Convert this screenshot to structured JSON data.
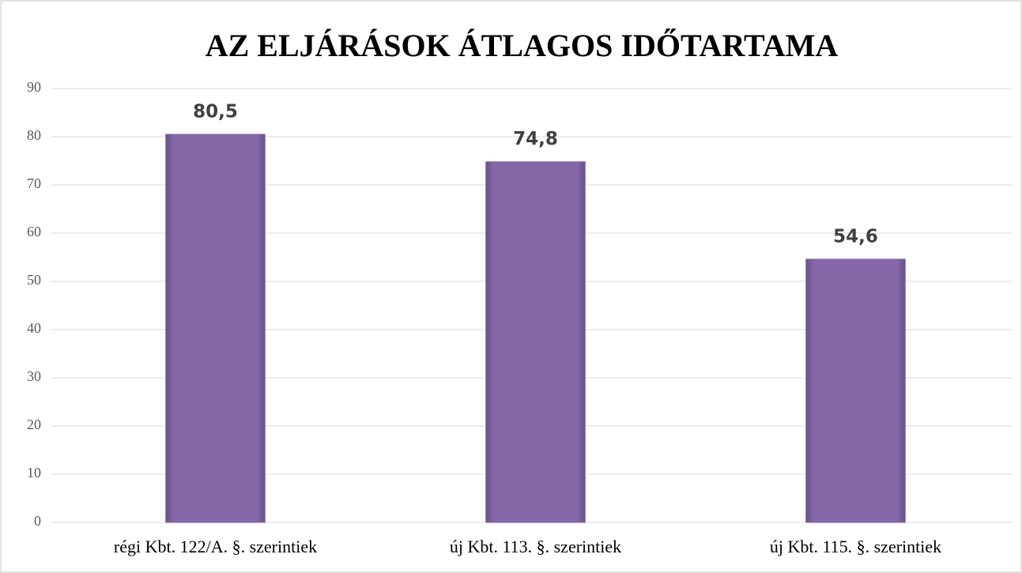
{
  "chart_data": {
    "type": "bar",
    "title": "AZ ELJÁRÁSOK ÁTLAGOS IDŐTARTAMA",
    "categories": [
      "régi Kbt. 122/A. §. szerintiek",
      "új Kbt. 113. §. szerintiek",
      "új Kbt. 115. §. szerintiek"
    ],
    "values": [
      80.5,
      74.8,
      54.6
    ],
    "value_labels": [
      "80,5",
      "74,8",
      "54,6"
    ],
    "color": "#8064a2",
    "ylim": [
      0,
      90
    ],
    "yticks": [
      0,
      10,
      20,
      30,
      40,
      50,
      60,
      70,
      80,
      90
    ],
    "grid": true
  }
}
